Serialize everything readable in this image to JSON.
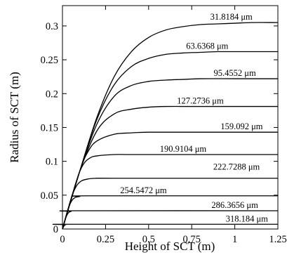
{
  "chart_data": {
    "type": "line",
    "title": "",
    "xlabel": "Height of SCT (m)",
    "ylabel": "Radius of SCT (m)",
    "xlim": [
      0,
      1.25
    ],
    "ylim": [
      0,
      0.33
    ],
    "xticks": [
      0,
      0.25,
      0.5,
      0.75,
      1,
      1.25
    ],
    "xtick_labels": [
      "0",
      "0.25",
      "0.5",
      "0.75",
      "1",
      "1.25"
    ],
    "yticks": [
      0,
      0.05,
      0.1,
      0.15,
      0.2,
      0.25,
      0.3
    ],
    "ytick_labels": [
      "0",
      "0.05",
      "0.1",
      "0.15",
      "0.2",
      "0.25",
      "0.3"
    ],
    "grid": false,
    "legend": "none",
    "line_color": "#000000",
    "series": [
      {
        "label": "31.8184 μm",
        "plateau": 0.305,
        "x": [
          0,
          0.1,
          0.2,
          0.3,
          0.4,
          0.5,
          0.6,
          0.7,
          0.8,
          0.9,
          1.0,
          1.1,
          1.25
        ],
        "y": [
          0,
          0.085,
          0.165,
          0.225,
          0.262,
          0.283,
          0.294,
          0.299,
          0.302,
          0.303,
          0.304,
          0.305,
          0.305
        ]
      },
      {
        "label": "63.6368 μm",
        "plateau": 0.262,
        "x": [
          0,
          0.1,
          0.2,
          0.3,
          0.4,
          0.5,
          0.6,
          0.7,
          0.8,
          0.9,
          1.0,
          1.25
        ],
        "y": [
          0,
          0.085,
          0.162,
          0.213,
          0.24,
          0.252,
          0.258,
          0.26,
          0.261,
          0.262,
          0.262,
          0.262
        ]
      },
      {
        "label": "95.4552 μm",
        "plateau": 0.222,
        "x": [
          0,
          0.1,
          0.2,
          0.3,
          0.4,
          0.5,
          0.6,
          0.7,
          0.8,
          1.0,
          1.25
        ],
        "y": [
          0,
          0.085,
          0.155,
          0.196,
          0.212,
          0.218,
          0.22,
          0.221,
          0.222,
          0.222,
          0.222
        ]
      },
      {
        "label": "127.2736 μm",
        "plateau": 0.181,
        "x": [
          0,
          0.1,
          0.2,
          0.3,
          0.4,
          0.5,
          0.6,
          0.75,
          1.0,
          1.25
        ],
        "y": [
          0,
          0.085,
          0.145,
          0.17,
          0.177,
          0.18,
          0.181,
          0.181,
          0.181,
          0.181
        ]
      },
      {
        "label": "159.092 μm",
        "plateau": 0.143,
        "x": [
          0,
          0.1,
          0.15,
          0.2,
          0.3,
          0.4,
          0.5,
          0.75,
          1.0,
          1.25
        ],
        "y": [
          0,
          0.085,
          0.115,
          0.13,
          0.14,
          0.142,
          0.143,
          0.143,
          0.143,
          0.143
        ]
      },
      {
        "label": "190.9104 μm",
        "plateau": 0.11,
        "x": [
          0,
          0.08,
          0.12,
          0.16,
          0.2,
          0.3,
          0.4,
          0.75,
          1.0,
          1.25
        ],
        "y": [
          0,
          0.07,
          0.095,
          0.105,
          0.108,
          0.11,
          0.11,
          0.11,
          0.11,
          0.11
        ]
      },
      {
        "label": "222.7288 μm",
        "plateau": 0.075,
        "x": [
          0,
          0.05,
          0.08,
          0.11,
          0.15,
          0.2,
          0.3,
          1.25
        ],
        "y": [
          0,
          0.045,
          0.063,
          0.071,
          0.074,
          0.075,
          0.075,
          0.075
        ]
      },
      {
        "label": "254.5472 μm",
        "plateau": 0.049,
        "x": [
          0,
          0.03,
          0.05,
          0.07,
          0.1,
          0.15,
          1.25
        ],
        "y": [
          0,
          0.027,
          0.04,
          0.046,
          0.048,
          0.049,
          0.049
        ]
      },
      {
        "label": "286.3656 μm",
        "plateau": 0.027,
        "x": [
          0,
          0.02,
          0.035,
          0.05,
          0.08,
          1.25
        ],
        "y": [
          0,
          0.017,
          0.024,
          0.026,
          0.027,
          0.027
        ]
      },
      {
        "label": "318.184 μm",
        "plateau": 0.007,
        "x": [
          0,
          0.01,
          0.02,
          0.04,
          1.25
        ],
        "y": [
          0,
          0.005,
          0.0065,
          0.007,
          0.007
        ]
      }
    ]
  }
}
